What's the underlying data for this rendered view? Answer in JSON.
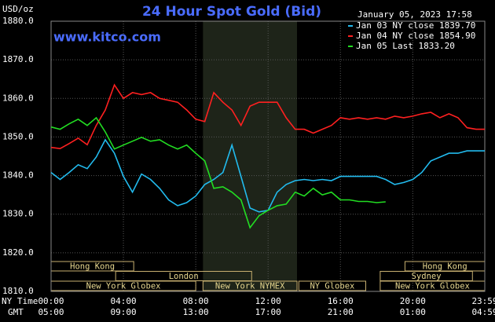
{
  "chart_data": {
    "type": "line",
    "title": "24 Hour Spot Gold (Bid)",
    "unit": "USD/oz",
    "timestamp": "January 05, 2023 17:58",
    "website": "www.kitco.com",
    "x_row_labels": [
      "NY Time",
      "GMT"
    ],
    "x": [
      0,
      0.5,
      1,
      1.5,
      2,
      2.5,
      3,
      3.5,
      4,
      4.5,
      5,
      5.5,
      6,
      6.5,
      7,
      7.5,
      8,
      8.5,
      9,
      9.5,
      10,
      10.5,
      11,
      11.5,
      12,
      12.5,
      13,
      13.5,
      14,
      14.5,
      15,
      15.5,
      16,
      16.5,
      17,
      17.5,
      18,
      18.5,
      19,
      19.5,
      20,
      20.5,
      21,
      21.5,
      22,
      22.5,
      23,
      23.5,
      23.983
    ],
    "xlim": [
      0,
      23.983
    ],
    "xticks": [
      {
        "value": 0,
        "label": "00:00"
      },
      {
        "value": 4,
        "label": "04:00"
      },
      {
        "value": 8,
        "label": "08:00"
      },
      {
        "value": 12,
        "label": "12:00"
      },
      {
        "value": 16,
        "label": "16:00"
      },
      {
        "value": 20,
        "label": "20:00"
      },
      {
        "value": 23.983,
        "label": "23:59"
      }
    ],
    "gmt_labels": [
      "05:00",
      "09:00",
      "13:00",
      "17:00",
      "21:00",
      "01:00",
      "04:59"
    ],
    "ylim": [
      1810,
      1880
    ],
    "yticks": [
      {
        "value": 1810,
        "label": "1810.0"
      },
      {
        "value": 1820,
        "label": "1820.0"
      },
      {
        "value": 1830,
        "label": "1830.0"
      },
      {
        "value": 1840,
        "label": "1840.0"
      },
      {
        "value": 1850,
        "label": "1850.0"
      },
      {
        "value": 1860,
        "label": "1860.0"
      },
      {
        "value": 1870,
        "label": "1870.0"
      },
      {
        "value": 1880,
        "label": "1880.0"
      }
    ],
    "grid": true,
    "shade": [
      8.4,
      13.6
    ],
    "sessions": [
      {
        "label": "Hong Kong",
        "start": 0,
        "end": 4.57,
        "row": 0
      },
      {
        "label": "Hong Kong",
        "start": 19.57,
        "end": 23.983,
        "row": 0
      },
      {
        "label": "London",
        "start": 3.57,
        "end": 11.09,
        "row": 1
      },
      {
        "label": "Sydney",
        "start": 18.2,
        "end": 23.3,
        "row": 1
      },
      {
        "label": "New York Globex",
        "start": 0,
        "end": 8,
        "row": 2
      },
      {
        "label": "New York NYMEX",
        "start": 8.4,
        "end": 13.6,
        "row": 2
      },
      {
        "label": "NY Globex",
        "start": 13.7,
        "end": 17.4,
        "row": 2
      },
      {
        "label": "New York Globex",
        "start": 18.2,
        "end": 23.983,
        "row": 2
      }
    ],
    "series": [
      {
        "name": "Jan 03 NY close 1839.70",
        "color": "#22bbee",
        "values": [
          1840.8,
          1839,
          1840.8,
          1842.8,
          1841.8,
          1844.8,
          1849.3,
          1845.8,
          1839.8,
          1835.7,
          1840.4,
          1839,
          1836.7,
          1833.7,
          1832.2,
          1833,
          1834.7,
          1837.7,
          1839,
          1840.8,
          1847.9,
          1839.8,
          1831.6,
          1830.6,
          1831,
          1835.7,
          1837.7,
          1838.7,
          1839,
          1838.7,
          1839,
          1838.7,
          1839.8,
          1839.8,
          1839.8,
          1839.8,
          1839.8,
          1839,
          1837.7,
          1838.2,
          1839,
          1840.8,
          1843.8,
          1844.8,
          1845.8,
          1845.8,
          1846.4,
          1846.4,
          1846.4
        ]
      },
      {
        "name": "Jan 04 NY close 1854.90",
        "color": "#ff2020",
        "values": [
          1847.3,
          1847,
          1848.3,
          1849.7,
          1848,
          1853,
          1857,
          1863.5,
          1860,
          1861.5,
          1861,
          1861.5,
          1860,
          1859.5,
          1859,
          1857,
          1854.6,
          1854,
          1861.5,
          1859,
          1857,
          1853,
          1858,
          1859,
          1859,
          1859,
          1855,
          1852,
          1852,
          1851,
          1852,
          1853,
          1855,
          1854.6,
          1855,
          1854.6,
          1855,
          1854.6,
          1855.4,
          1855,
          1855.4,
          1856,
          1856.4,
          1855,
          1856,
          1855,
          1852.4,
          1852,
          1852
        ]
      },
      {
        "name": "Jan 05 Last 1833.20",
        "color": "#22dd22",
        "values": [
          1852.6,
          1852,
          1853.4,
          1854.6,
          1853,
          1855,
          1851.3,
          1846.9,
          1847.9,
          1848.9,
          1849.9,
          1848.9,
          1849.3,
          1847.9,
          1846.9,
          1847.9,
          1845.8,
          1843.8,
          1836.7,
          1837.1,
          1835.7,
          1833.7,
          1826.5,
          1829.6,
          1831,
          1832.2,
          1832.6,
          1835.7,
          1834.7,
          1836.7,
          1835,
          1835.7,
          1833.7,
          1833.7,
          1833.3,
          1833.3,
          1833,
          1833.2,
          null,
          null,
          null,
          null,
          null,
          null,
          null,
          null,
          null,
          null,
          null
        ]
      }
    ]
  }
}
